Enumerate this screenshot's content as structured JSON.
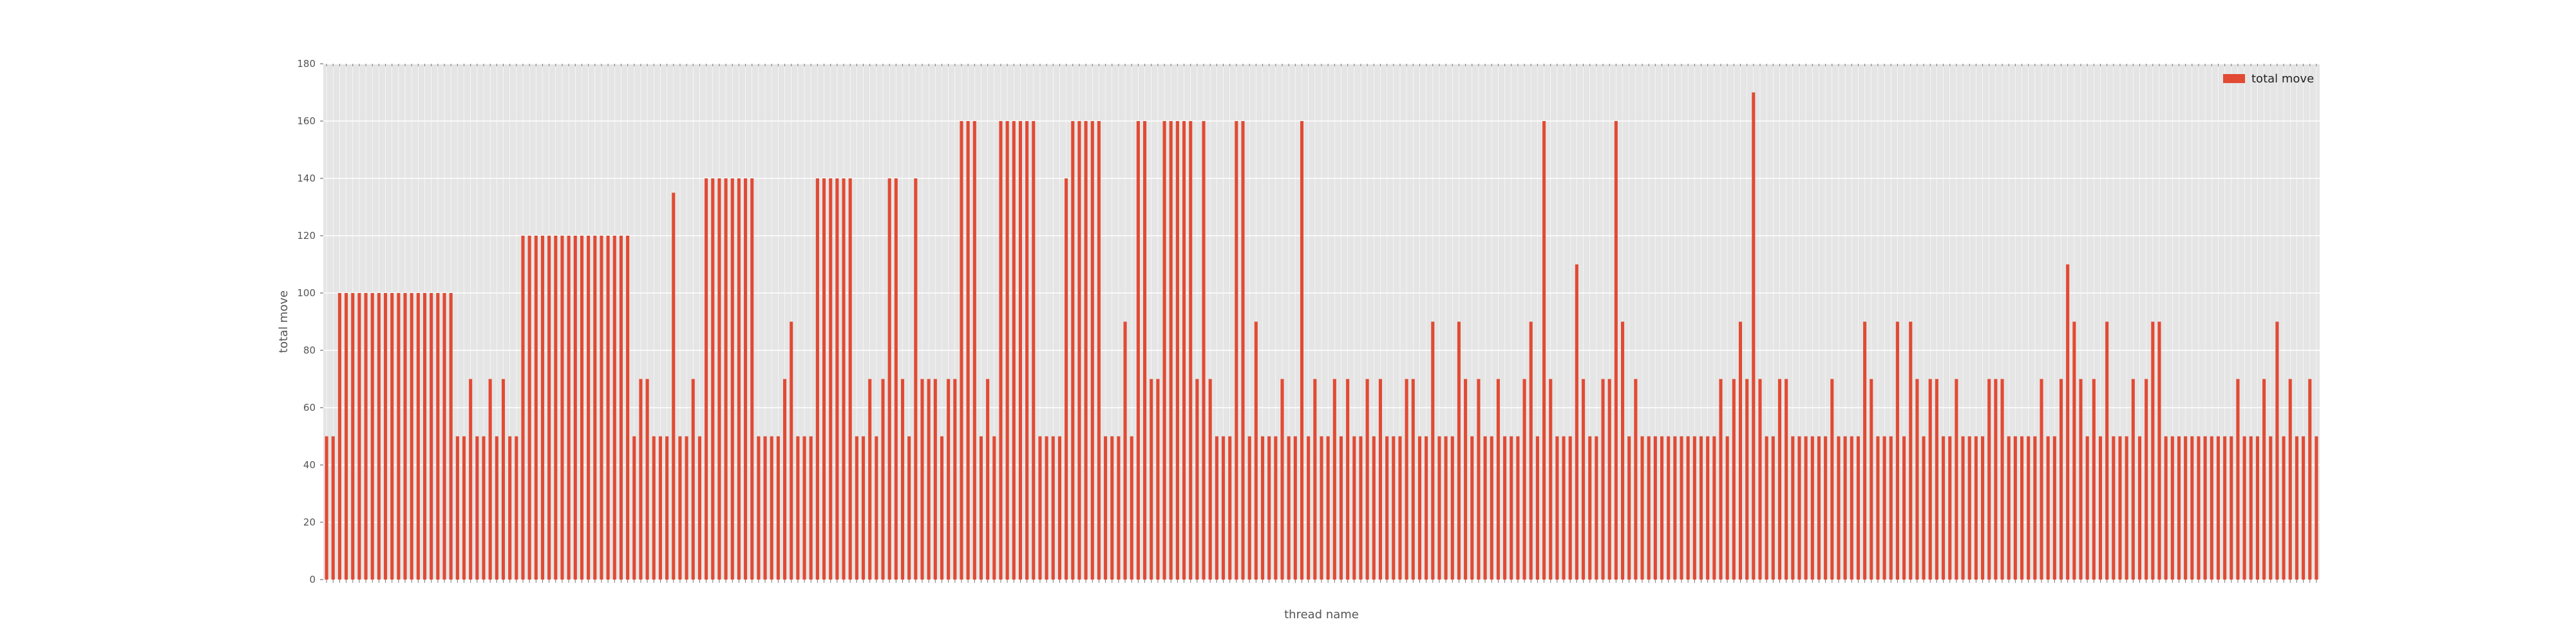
{
  "chart_data": {
    "type": "bar",
    "xlabel": "thread name",
    "ylabel": "total move",
    "ylim": [
      0,
      180
    ],
    "yticks": [
      0,
      20,
      40,
      60,
      80,
      100,
      120,
      140,
      160,
      180
    ],
    "grid": true,
    "legend_placement": "top-right",
    "background": "#e5e5e5",
    "series": [
      {
        "name": "total move",
        "color": "#e24a33",
        "values": [
          50,
          50,
          100,
          100,
          100,
          100,
          100,
          100,
          100,
          100,
          100,
          100,
          100,
          100,
          100,
          100,
          100,
          100,
          100,
          100,
          50,
          50,
          70,
          50,
          50,
          70,
          50,
          70,
          50,
          50,
          120,
          120,
          120,
          120,
          120,
          120,
          120,
          120,
          120,
          120,
          120,
          120,
          120,
          120,
          120,
          120,
          120,
          50,
          70,
          70,
          50,
          50,
          50,
          135,
          50,
          50,
          70,
          50,
          140,
          140,
          140,
          140,
          140,
          140,
          140,
          140,
          50,
          50,
          50,
          50,
          70,
          90,
          50,
          50,
          50,
          140,
          140,
          140,
          140,
          140,
          140,
          50,
          50,
          70,
          50,
          70,
          140,
          140,
          70,
          50,
          140,
          70,
          70,
          70,
          50,
          70,
          70,
          160,
          160,
          160,
          50,
          70,
          50,
          160,
          160,
          160,
          160,
          160,
          160,
          50,
          50,
          50,
          50,
          140,
          160,
          160,
          160,
          160,
          160,
          50,
          50,
          50,
          90,
          50,
          160,
          160,
          70,
          70,
          160,
          160,
          160,
          160,
          160,
          70,
          160,
          70,
          50,
          50,
          50,
          160,
          160,
          50,
          90,
          50,
          50,
          50,
          70,
          50,
          50,
          160,
          50,
          70,
          50,
          50,
          70,
          50,
          70,
          50,
          50,
          70,
          50,
          70,
          50,
          50,
          50,
          70,
          70,
          50,
          50,
          90,
          50,
          50,
          50,
          90,
          70,
          50,
          70,
          50,
          50,
          70,
          50,
          50,
          50,
          70,
          90,
          50,
          160,
          70,
          50,
          50,
          50,
          110,
          70,
          50,
          50,
          70,
          70,
          160,
          90,
          50,
          70,
          50,
          50,
          50,
          50,
          50,
          50,
          50,
          50,
          50,
          50,
          50,
          50,
          70,
          50,
          70,
          90,
          70,
          170,
          70,
          50,
          50,
          70,
          70,
          50,
          50,
          50,
          50,
          50,
          50,
          70,
          50,
          50,
          50,
          50,
          90,
          70,
          50,
          50,
          50,
          90,
          50,
          90,
          70,
          50,
          70,
          70,
          50,
          50,
          70,
          50,
          50,
          50,
          50,
          70,
          70,
          70,
          50,
          50,
          50,
          50,
          50,
          70,
          50,
          50,
          70,
          110,
          90,
          70,
          50,
          70,
          50,
          90,
          50,
          50,
          50,
          70,
          50,
          70,
          90,
          90,
          50,
          50,
          50,
          50,
          50,
          50,
          50,
          50,
          50,
          50,
          50,
          70,
          50,
          50,
          50,
          70,
          50,
          90,
          50,
          70,
          50,
          50,
          70,
          50
        ]
      }
    ]
  }
}
